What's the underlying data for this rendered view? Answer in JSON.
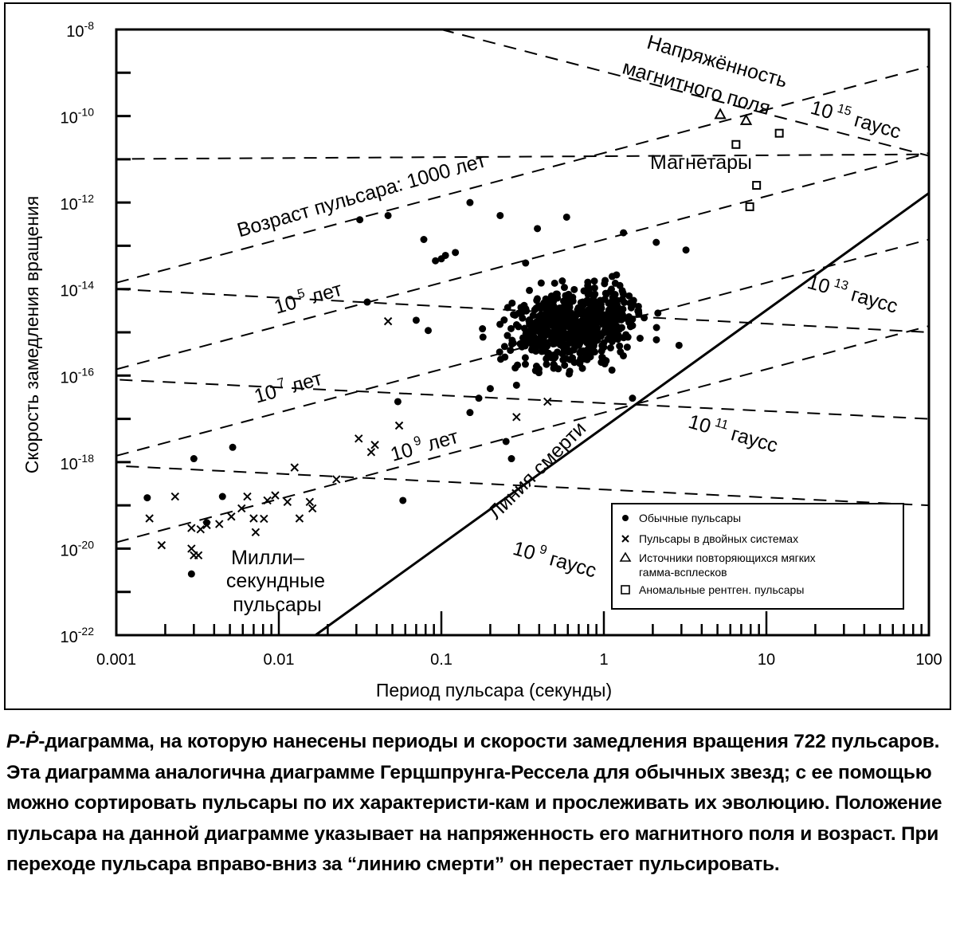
{
  "chart_data": {
    "type": "scatter",
    "title": "",
    "xlabel": "Период пульсара (секунды)",
    "ylabel": "Скорость замедления вращения",
    "x_scale": "log",
    "y_scale": "log",
    "xlim": [
      0.001,
      100
    ],
    "ylim": [
      1e-22,
      1e-08
    ],
    "x_tick_labels": [
      "0.001",
      "0.01",
      "0.1",
      "1",
      "10",
      "100"
    ],
    "y_tick_labels": [
      {
        "base": "10",
        "exp": "-8"
      },
      {
        "base": "10",
        "exp": "-10"
      },
      {
        "base": "10",
        "exp": "-12"
      },
      {
        "base": "10",
        "exp": "-14"
      },
      {
        "base": "10",
        "exp": "-16"
      },
      {
        "base": "10",
        "exp": "-18"
      },
      {
        "base": "10",
        "exp": "-20"
      },
      {
        "base": "10",
        "exp": "-22"
      }
    ],
    "grid": false,
    "legend": {
      "position": "bottom-right",
      "entries": [
        {
          "marker": "dot",
          "label": "Обычные пульсары"
        },
        {
          "marker": "cross",
          "label": "Пульсары в двойных системах"
        },
        {
          "marker": "triangle",
          "label": "Источники повторяющихся мягких",
          "label2": "гамма-всплесков"
        },
        {
          "marker": "square",
          "label": "Аномальные рентген. пульсары"
        }
      ]
    },
    "field_lines": [
      {
        "b": "10",
        "exp": "9",
        "unit": "гаусс"
      },
      {
        "b": "10",
        "exp": "11",
        "unit": "гаусс"
      },
      {
        "b": "10",
        "exp": "13",
        "unit": "гаусс"
      },
      {
        "b": "10",
        "exp": "15",
        "unit": "гаусс"
      }
    ],
    "age_lines": [
      {
        "text": "Возраст пульсара: 1000 лет"
      },
      {
        "base": "10",
        "exp": "5",
        "unit": "лет"
      },
      {
        "base": "10",
        "exp": "7",
        "unit": "лет"
      },
      {
        "base": "10",
        "exp": "9",
        "unit": "лет"
      }
    ],
    "region_labels": {
      "field_title_line1": "Напряжённость",
      "field_title_line2": "магнитного поля",
      "death_line": "Линия смерти",
      "magnetars": "Магнетары",
      "msp_line1": "Милли–",
      "msp_line2": "секундные",
      "msp_line3": "пульсары"
    },
    "series": [
      {
        "name": "Обычные пульсары",
        "marker": "dot",
        "points": [
          [
            0.00155,
            1.5e-19
          ],
          [
            0.003,
            1.2e-18
          ],
          [
            0.0052,
            2.2e-18
          ],
          [
            0.0045,
            1.6e-19
          ],
          [
            0.0036,
            4e-20
          ],
          [
            0.0029,
            2.6e-21
          ],
          [
            0.035,
            5e-15
          ],
          [
            0.0315,
            4e-13
          ],
          [
            0.047,
            5e-13
          ],
          [
            0.058,
            1.3e-19
          ],
          [
            0.078,
            1.4e-13
          ],
          [
            0.083,
            1.1e-15
          ],
          [
            0.15,
            1e-12
          ],
          [
            0.17,
            3e-17
          ],
          [
            0.2,
            5e-17
          ],
          [
            0.25,
            3e-18
          ],
          [
            0.27,
            1.2e-18
          ],
          [
            0.23,
            5e-13
          ],
          [
            0.39,
            2.5e-13
          ],
          [
            0.59,
            4.6e-13
          ],
          [
            0.33,
            4e-14
          ],
          [
            0.092,
            4.5e-14
          ],
          [
            0.106,
            6e-14
          ],
          [
            0.122,
            7e-14
          ],
          [
            0.1,
            5e-14
          ],
          [
            0.07,
            1.9e-15
          ],
          [
            0.054,
            2.5e-17
          ],
          [
            0.29,
            6e-17
          ],
          [
            0.15,
            1.4e-17
          ],
          [
            1.5,
            3e-17
          ],
          [
            2.9,
            5e-16
          ],
          [
            3.2,
            8e-14
          ],
          [
            2.1,
            1.2e-13
          ],
          [
            1.32,
            2e-13
          ]
        ]
      },
      {
        "name": "Пульсары в двойных системах",
        "marker": "cross",
        "points": [
          [
            0.0016,
            5e-20
          ],
          [
            0.0019,
            1.2e-20
          ],
          [
            0.0023,
            1.6e-19
          ],
          [
            0.0029,
            3e-20
          ],
          [
            0.0033,
            2.8e-20
          ],
          [
            0.0036,
            3.5e-20
          ],
          [
            0.0029,
            1e-20
          ],
          [
            0.003,
            7e-21
          ],
          [
            0.0032,
            7e-21
          ],
          [
            0.0043,
            3.7e-20
          ],
          [
            0.0051,
            5.5e-20
          ],
          [
            0.0059,
            8.5e-20
          ],
          [
            0.0064,
            1.6e-19
          ],
          [
            0.007,
            5e-20
          ],
          [
            0.0072,
            2.4e-20
          ],
          [
            0.0081,
            4.9e-20
          ],
          [
            0.0085,
            1.3e-19
          ],
          [
            0.0095,
            1.7e-19
          ],
          [
            0.0113,
            1.2e-19
          ],
          [
            0.0134,
            5e-20
          ],
          [
            0.0161,
            8.5e-20
          ],
          [
            0.0155,
            1.2e-19
          ],
          [
            0.0125,
            7.5e-19
          ],
          [
            0.0226,
            4e-19
          ],
          [
            0.039,
            2.5e-18
          ],
          [
            0.037,
            1.7e-18
          ],
          [
            0.031,
            3.5e-18
          ],
          [
            0.047,
            1.8e-15
          ],
          [
            0.055,
            7e-18
          ],
          [
            0.29,
            1.1e-17
          ],
          [
            0.45,
            2.5e-17
          ]
        ]
      },
      {
        "name": "Источники повторяющихся мягких гамма-всплесков",
        "marker": "triangle",
        "points": [
          [
            5.2,
            1.1e-10
          ],
          [
            7.5,
            8e-11
          ]
        ]
      },
      {
        "name": "Аномальные рентген. пульсары",
        "marker": "square",
        "points": [
          [
            6.5,
            2.2e-11
          ],
          [
            12,
            4e-11
          ],
          [
            8.7,
            2.5e-12
          ],
          [
            7.9,
            8e-13
          ]
        ]
      }
    ]
  },
  "caption": {
    "lead": "P-Ṗ",
    "text": "-диаграмма, на которую нанесены периоды и скорости замедления вращения 722 пульсаров. Эта диаграмма аналогична диаграмме Герцшпрунга-Рессела для обычных звезд; с ее помощью можно сортировать пульсары по их характеристи-кам и прослеживать их эволюцию. Положение пульсара на данной диаграмме указывает на напряженность его магнитного поля и возраст. При переходе пульсара вправо-вниз за “линию смерти” он перестает пульсировать."
  }
}
